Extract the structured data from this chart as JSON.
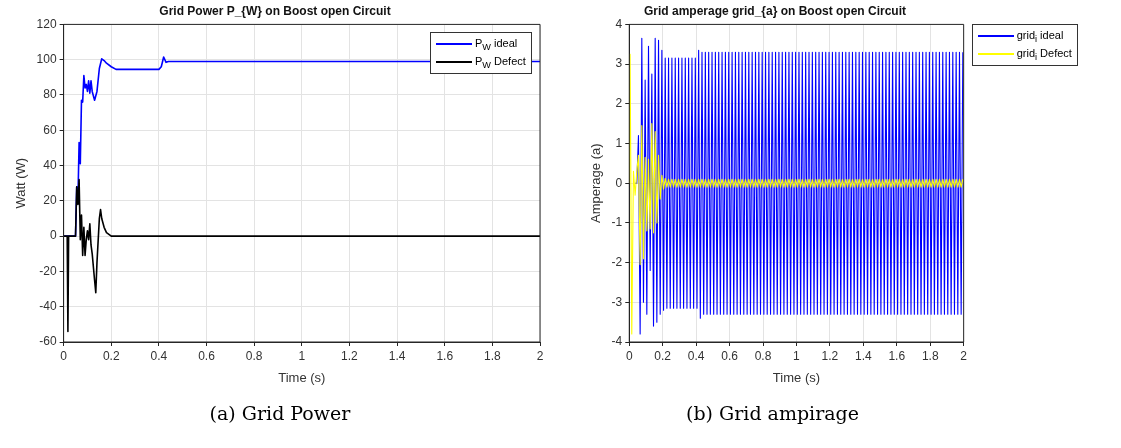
{
  "chart_data": [
    {
      "type": "line",
      "title": "Grid Power P_{W} on Boost open Circuit",
      "xlabel": "Time (s)",
      "ylabel": "Watt (W)",
      "xlim": [
        0,
        2
      ],
      "xticks": [
        0,
        0.2,
        0.4,
        0.6,
        0.8,
        1,
        1.2,
        1.4,
        1.6,
        1.8,
        2
      ],
      "ylim": [
        -60,
        120
      ],
      "yticks": [
        -60,
        -40,
        -20,
        0,
        20,
        40,
        60,
        80,
        100,
        120
      ],
      "grid": true,
      "legend": "top right",
      "annotations": [
        "(a) Grid Power"
      ],
      "series": [
        {
          "name": "P$_{W}$ ideal",
          "color": "#0000ff",
          "x": [
            0,
            0.05,
            0.055,
            0.06,
            0.065,
            0.07,
            0.075,
            0.08,
            0.085,
            0.09,
            0.095,
            0.1,
            0.105,
            0.11,
            0.115,
            0.12,
            0.13,
            0.14,
            0.15,
            0.16,
            0.17,
            0.18,
            0.2,
            0.22,
            0.25,
            0.3,
            0.4,
            0.41,
            0.42,
            0.43,
            0.44,
            0.5,
            1,
            1.5,
            2
          ],
          "values": [
            0,
            0,
            28,
            20,
            53,
            41,
            77,
            76,
            91,
            84,
            86,
            82,
            88,
            81,
            88,
            82,
            77,
            82,
            95,
            100.5,
            99.5,
            98,
            96,
            94.5,
            94.5,
            94.5,
            94.5,
            96,
            101.5,
            98.5,
            99,
            99,
            99,
            99,
            99
          ]
        },
        {
          "name": "P$_{W}$ Defect",
          "color": "#000000",
          "x": [
            0,
            0.015,
            0.018,
            0.021,
            0.05,
            0.055,
            0.06,
            0.065,
            0.07,
            0.075,
            0.08,
            0.085,
            0.09,
            0.095,
            0.1,
            0.105,
            0.11,
            0.115,
            0.12,
            0.13,
            0.135,
            0.14,
            0.15,
            0.155,
            0.16,
            0.17,
            0.18,
            0.2,
            0.25,
            1,
            2
          ],
          "values": [
            0,
            0,
            -54,
            0,
            0,
            28,
            18,
            32,
            -2,
            12,
            -11,
            5,
            -11,
            -2,
            3,
            -2,
            7,
            -5,
            -10,
            -25,
            -32,
            -15,
            10,
            15,
            10,
            5,
            2,
            0,
            0,
            0,
            0
          ]
        }
      ]
    },
    {
      "type": "line",
      "title": "Grid amperage grid_{a} on Boost open Circuit",
      "xlabel": "Time (s)",
      "ylabel": "Amperage (a)",
      "xlim": [
        0,
        2
      ],
      "xticks": [
        0,
        0.2,
        0.4,
        0.6,
        0.8,
        1,
        1.2,
        1.4,
        1.6,
        1.8,
        2
      ],
      "ylim": [
        -4,
        4
      ],
      "yticks": [
        -4,
        -3,
        -2,
        -1,
        0,
        1,
        2,
        3,
        4
      ],
      "grid": true,
      "legend": "top right",
      "annotations": [
        "(b) Grid ampirage"
      ],
      "x": [
        0,
        0.005,
        0.015,
        0.025,
        0.035,
        0.045,
        0.055,
        0.065,
        0.075,
        0.085,
        0.095,
        0.105,
        0.115,
        0.125,
        0.135,
        0.145,
        0.155,
        0.165,
        0.175,
        0.185,
        0.195,
        0.205,
        0.215,
        0.225,
        0.235,
        0.245,
        0.255,
        0.265,
        0.275,
        0.285,
        0.295,
        0.305,
        0.315,
        0.325,
        0.335,
        0.345,
        0.355,
        0.365,
        0.375,
        0.385,
        0.395,
        0.405,
        0.415,
        0.425,
        0.435,
        0.445,
        0.455,
        0.465,
        0.475,
        0.485,
        0.495,
        0.505,
        0.515,
        0.525,
        0.535,
        0.545,
        0.555,
        0.565,
        0.575,
        0.585,
        0.595,
        0.605,
        0.615,
        0.625,
        0.635,
        0.645,
        0.655,
        0.665,
        0.675,
        0.685,
        0.695,
        0.705,
        0.715,
        0.725,
        0.735,
        0.745,
        0.755,
        0.765,
        0.775,
        0.785,
        0.795,
        0.805,
        0.815,
        0.825,
        0.835,
        0.845,
        0.855,
        0.865,
        0.875,
        0.885,
        0.895,
        0.905,
        0.915,
        0.925,
        0.935,
        0.945,
        0.955,
        0.965,
        0.975,
        0.985,
        0.995,
        1.005,
        1.015,
        1.025,
        1.035,
        1.045,
        1.055,
        1.065,
        1.075,
        1.085,
        1.095,
        1.105,
        1.115,
        1.125,
        1.135,
        1.145,
        1.155,
        1.165,
        1.175,
        1.185,
        1.195,
        1.205,
        1.215,
        1.225,
        1.235,
        1.245,
        1.255,
        1.265,
        1.275,
        1.285,
        1.295,
        1.305,
        1.315,
        1.325,
        1.335,
        1.345,
        1.355,
        1.365,
        1.375,
        1.385,
        1.395,
        1.405,
        1.415,
        1.425,
        1.435,
        1.445,
        1.455,
        1.465,
        1.475,
        1.485,
        1.495,
        1.505,
        1.515,
        1.525,
        1.535,
        1.545,
        1.555,
        1.565,
        1.575,
        1.585,
        1.595,
        1.605,
        1.615,
        1.625,
        1.635,
        1.645,
        1.655,
        1.665,
        1.675,
        1.685,
        1.695,
        1.705,
        1.715,
        1.725,
        1.735,
        1.745,
        1.755,
        1.765,
        1.775,
        1.785,
        1.795,
        1.805,
        1.815,
        1.825,
        1.835,
        1.845,
        1.855,
        1.865,
        1.875,
        1.885,
        1.895,
        1.905,
        1.915,
        1.925,
        1.935,
        1.945,
        1.955,
        1.965,
        1.975,
        1.985,
        1.995
      ],
      "series": [
        {
          "name": "grid$_{i}$ ideal",
          "color": "#0000ff",
          "values": [
            null,
            null,
            null,
            null,
            0,
            0,
            1.2,
            -3.8,
            3.65,
            -3.0,
            2.6,
            -3.3,
            3.45,
            -2.2,
            2.75,
            -3.6,
            3.65,
            -3.5,
            3.6,
            -3.3,
            3.35,
            -3.2,
            3.15,
            -3.15,
            3.15,
            -3.15,
            3.15,
            -3.15,
            3.15,
            -3.15,
            3.15,
            -3.15,
            3.15,
            -3.15,
            3.15,
            -3.15,
            3.15,
            -3.15,
            3.15,
            -3.15,
            3.15,
            -3.15,
            3.35,
            -3.4,
            3.3,
            -3.3,
            3.3,
            -3.3,
            3.3,
            -3.3,
            3.3,
            -3.3,
            3.3,
            -3.3,
            3.3,
            -3.3,
            3.3,
            -3.3,
            3.3,
            -3.3,
            3.3,
            -3.3,
            3.3,
            -3.3,
            3.3,
            -3.3,
            3.3,
            -3.3,
            3.3,
            -3.3,
            3.3,
            -3.3,
            3.3,
            -3.3,
            3.3,
            -3.3,
            3.3,
            -3.3,
            3.3,
            -3.3,
            3.3,
            -3.3,
            3.3,
            -3.3,
            3.3,
            -3.3,
            3.3,
            -3.3,
            3.3,
            -3.3,
            3.3,
            -3.3,
            3.3,
            -3.3,
            3.3,
            -3.3,
            3.3,
            -3.3,
            3.3,
            -3.3,
            3.3,
            -3.3,
            3.3,
            -3.3,
            3.3,
            -3.3,
            3.3,
            -3.3,
            3.3,
            -3.3,
            3.3,
            -3.3,
            3.3,
            -3.3,
            3.3,
            -3.3,
            3.3,
            -3.3,
            3.3,
            -3.3,
            3.3,
            -3.3,
            3.3,
            -3.3,
            3.3,
            -3.3,
            3.3,
            -3.3,
            3.3,
            -3.3,
            3.3,
            -3.3,
            3.3,
            -3.3,
            3.3,
            -3.3,
            3.3,
            -3.3,
            3.3,
            -3.3,
            3.3,
            -3.3,
            3.3,
            -3.3,
            3.3,
            -3.3,
            3.3,
            -3.3,
            3.3,
            -3.3,
            3.3,
            -3.3,
            3.3,
            -3.3,
            3.3,
            -3.3,
            3.3,
            -3.3,
            3.3,
            -3.3,
            3.3,
            -3.3,
            3.3,
            -3.3,
            3.3,
            -3.3,
            3.3,
            -3.3,
            3.3,
            -3.3,
            3.3,
            -3.3,
            3.3,
            -3.3,
            3.3,
            -3.3,
            3.3,
            -3.3,
            3.3,
            -3.3,
            3.3,
            -3.3,
            3.3,
            -3.3,
            3.3,
            -3.3,
            3.3,
            -3.3,
            3.3,
            -3.3,
            3.3,
            -3.3,
            3.3,
            -3.3,
            3.3,
            -3.3,
            3.3,
            -3.3,
            3.3,
            -3.3,
            3.3
          ]
        },
        {
          "name": "grid$_{i}$ Defect",
          "color": "#ffff00",
          "values": [
            0,
            3.25,
            -3.8,
            0.3,
            -0.3,
            0.3,
            0.7,
            -2.05,
            1.45,
            -1.9,
            0.65,
            -1.2,
            0.6,
            -1.15,
            1.5,
            -1.25,
            1.3,
            -1.0,
            0.7,
            -0.4,
            0.2,
            -0.15,
            0.12,
            -0.1,
            0.1,
            -0.1,
            0.1,
            -0.1,
            0.1,
            -0.1,
            0.1,
            -0.1,
            0.1,
            -0.1,
            0.1,
            -0.1,
            0.1,
            -0.1,
            0.1,
            -0.1,
            0.1,
            -0.1,
            0.1,
            -0.1,
            0.1,
            -0.1,
            0.1,
            -0.1,
            0.1,
            -0.1,
            0.1,
            -0.1,
            0.1,
            -0.1,
            0.1,
            -0.1,
            0.1,
            -0.1,
            0.1,
            -0.1,
            0.1,
            -0.1,
            0.1,
            -0.1,
            0.1,
            -0.1,
            0.1,
            -0.1,
            0.1,
            -0.1,
            0.1,
            -0.1,
            0.1,
            -0.1,
            0.1,
            -0.1,
            0.1,
            -0.1,
            0.1,
            -0.1,
            0.1,
            -0.1,
            0.1,
            -0.1,
            0.1,
            -0.1,
            0.1,
            -0.1,
            0.1,
            -0.1,
            0.1,
            -0.1,
            0.1,
            -0.1,
            0.1,
            -0.1,
            0.1,
            -0.1,
            0.1,
            -0.1,
            0.1,
            -0.1,
            0.1,
            -0.1,
            0.1,
            -0.1,
            0.1,
            -0.1,
            0.1,
            -0.1,
            0.1,
            -0.1,
            0.1,
            -0.1,
            0.1,
            -0.1,
            0.1,
            -0.1,
            0.1,
            -0.1,
            0.1,
            -0.1,
            0.1,
            -0.1,
            0.1,
            -0.1,
            0.1,
            -0.1,
            0.1,
            -0.1,
            0.1,
            -0.1,
            0.1,
            -0.1,
            0.1,
            -0.1,
            0.1,
            -0.1,
            0.1,
            -0.1,
            0.1,
            -0.1,
            0.1,
            -0.1,
            0.1,
            -0.1,
            0.1,
            -0.1,
            0.1,
            -0.1,
            0.1,
            -0.1,
            0.1,
            -0.1,
            0.1,
            -0.1,
            0.1,
            -0.1,
            0.1,
            -0.1,
            0.1,
            -0.1,
            0.1,
            -0.1,
            0.1,
            -0.1,
            0.1,
            -0.1,
            0.1,
            -0.1,
            0.1,
            -0.1,
            0.1,
            -0.1,
            0.1,
            -0.1,
            0.1,
            -0.1,
            0.1,
            -0.1,
            0.1,
            -0.1,
            0.1,
            -0.1,
            0.1,
            -0.1,
            0.1,
            -0.1,
            0.1,
            -0.1,
            0.1,
            -0.1,
            0.1,
            -0.1,
            0.1,
            -0.1,
            0.1,
            -0.1,
            0.1,
            -0.1,
            0.1
          ]
        }
      ]
    }
  ]
}
